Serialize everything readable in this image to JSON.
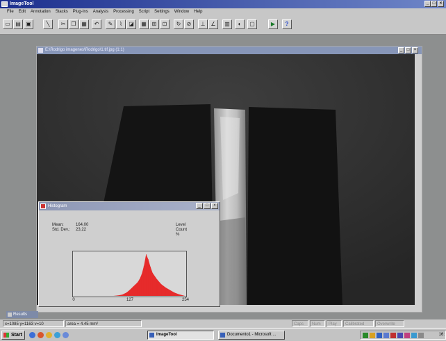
{
  "app": {
    "title": "ImageTool",
    "window_controls": [
      "_",
      "□",
      "×"
    ]
  },
  "menu": [
    "File",
    "Edit",
    "Annotation",
    "Stacks",
    "Plug-Ins",
    "Analysis",
    "Processing",
    "Script",
    "Settings",
    "Window",
    "Help"
  ],
  "toolbar": {
    "buttons": [
      {
        "icon": "open-icon",
        "glyph": "▭"
      },
      {
        "icon": "save-icon",
        "glyph": "▤"
      },
      {
        "icon": "print-icon",
        "glyph": "▣"
      },
      {
        "icon": "line-tool-icon",
        "glyph": "╲"
      },
      {
        "icon": "cut-icon",
        "glyph": "✂"
      },
      {
        "icon": "copy-icon",
        "glyph": "❐"
      },
      {
        "icon": "paste-icon",
        "glyph": "▦"
      },
      {
        "icon": "undo-icon",
        "glyph": "↶"
      },
      {
        "icon": "pencil-icon",
        "glyph": "✎"
      },
      {
        "icon": "brush-icon",
        "glyph": "⌇"
      },
      {
        "icon": "fill-icon",
        "glyph": "◪"
      },
      {
        "icon": "grid-icon",
        "glyph": "▦"
      },
      {
        "icon": "zoom-icon",
        "glyph": "⊞"
      },
      {
        "icon": "crop-icon",
        "glyph": "⊡"
      },
      {
        "icon": "rotate-icon",
        "glyph": "↻"
      },
      {
        "icon": "eyedropper-icon",
        "glyph": "⊘"
      },
      {
        "icon": "measure-icon",
        "glyph": "⊥"
      },
      {
        "icon": "angle-icon",
        "glyph": "∠"
      },
      {
        "icon": "histogram-icon",
        "glyph": "▥"
      },
      {
        "icon": "contrast-icon",
        "glyph": "◐"
      },
      {
        "icon": "calibrate-icon",
        "glyph": "▢"
      },
      {
        "icon": "play-icon",
        "glyph": "▶"
      },
      {
        "icon": "help-icon",
        "glyph": "?"
      }
    ]
  },
  "image_window": {
    "title": "E:\\Rodrigo imagenes\\Rodrigo\\1.tif.jpg (1:1)",
    "controls": [
      "_",
      "□",
      "×"
    ]
  },
  "histogram": {
    "title": "Histogram",
    "controls": [
      "_",
      "□",
      "×"
    ],
    "mean_label": "Mean:",
    "mean_value": "164,00",
    "stddev_label": "Std. Dev.:",
    "stddev_value": "23,22",
    "level_label": "Level",
    "count_label": "Count",
    "percent_label": "%",
    "ticks": [
      "0",
      "127",
      "254"
    ]
  },
  "chart_data": {
    "type": "area",
    "x": [
      0,
      90,
      100,
      110,
      120,
      127,
      135,
      145,
      150,
      155,
      160,
      165,
      170,
      175,
      180,
      190,
      200,
      210,
      220,
      230,
      240,
      254
    ],
    "values": [
      0,
      0,
      1,
      3,
      8,
      14,
      22,
      32,
      40,
      52,
      72,
      100,
      88,
      70,
      55,
      40,
      28,
      20,
      14,
      8,
      4,
      0
    ],
    "xlim": [
      0,
      254
    ],
    "ylim": [
      0,
      100
    ],
    "tick_labels": [
      "0",
      "127",
      "254"
    ],
    "color": "#e62b2b"
  },
  "results_window": {
    "title": "Results"
  },
  "status": {
    "coords": "x=1085 y=1163 v=10",
    "area": "area = 4.45 mm²",
    "indicators": [
      "Caps",
      "Num",
      "Play",
      "Calibrated",
      "Overwrite"
    ]
  },
  "taskbar": {
    "start_label": "Start",
    "tasks": [
      {
        "label": "ImageTool",
        "active": true
      },
      {
        "label": "Documento1 - Microsoft ...",
        "active": false
      }
    ],
    "clock": "16:"
  }
}
